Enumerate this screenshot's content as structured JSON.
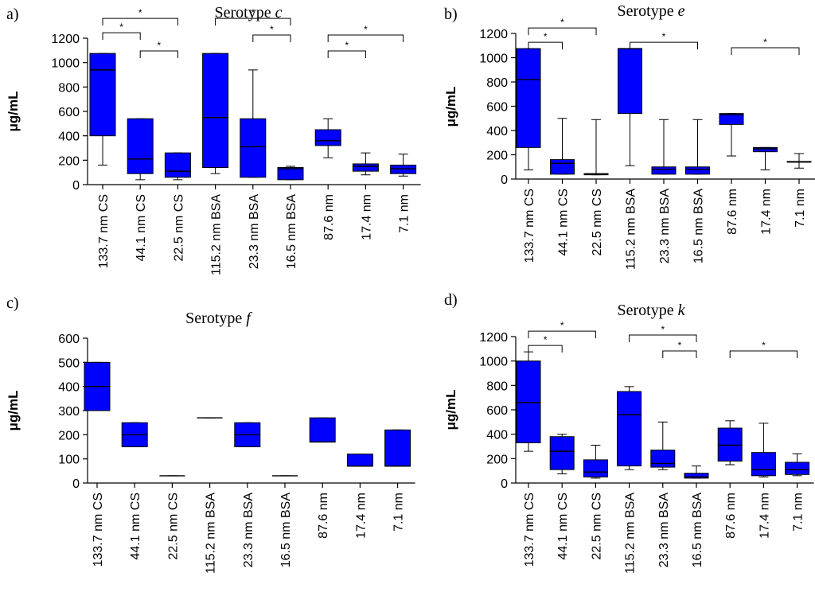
{
  "chart_data": [
    {
      "type": "box",
      "panel": "a)",
      "title": "Serotype ",
      "title_italic": "c",
      "ylabel": "μg/mL",
      "ylim": [
        0,
        1200
      ],
      "yticks": [
        "0",
        "200",
        "400",
        "600",
        "800",
        "1000",
        "1200"
      ],
      "categories": [
        "133.7 nm CS",
        "44.1 nm CS",
        "22.5 nm CS",
        "115.2 nm BSA",
        "23.3 nm BSA",
        "16.5 nm BSA",
        "87.6 nm",
        "17.4 nm",
        "7.1 nm"
      ],
      "boxes": [
        {
          "min": 160,
          "q1": 400,
          "median": 940,
          "q3": 1075,
          "max": 1075
        },
        {
          "min": 40,
          "q1": 90,
          "median": 210,
          "q3": 540,
          "max": 540
        },
        {
          "min": 40,
          "q1": 60,
          "median": 110,
          "q3": 260,
          "max": 260
        },
        {
          "min": 90,
          "q1": 140,
          "median": 550,
          "q3": 1075,
          "max": 1075
        },
        {
          "min": 60,
          "q1": 60,
          "median": 310,
          "q3": 540,
          "max": 940
        },
        {
          "min": 40,
          "q1": 40,
          "median": 130,
          "q3": 140,
          "max": 150
        },
        {
          "min": 220,
          "q1": 320,
          "median": 360,
          "q3": 450,
          "max": 540
        },
        {
          "min": 80,
          "q1": 110,
          "median": 150,
          "q3": 170,
          "max": 260
        },
        {
          "min": 70,
          "q1": 90,
          "median": 130,
          "q3": 160,
          "max": 250
        }
      ],
      "significance": [
        {
          "from": 0,
          "to": 1,
          "level": 1,
          "label": "*"
        },
        {
          "from": 0,
          "to": 2,
          "level": 2,
          "label": "*"
        },
        {
          "from": 1,
          "to": 2,
          "level": 0,
          "label": "*"
        },
        {
          "from": 3,
          "to": 5,
          "level": 2,
          "label": "*"
        },
        {
          "from": 4,
          "to": 5,
          "level": 1,
          "label": "*"
        },
        {
          "from": 6,
          "to": 7,
          "level": 0,
          "label": "*"
        },
        {
          "from": 6,
          "to": 8,
          "level": 1,
          "label": "*"
        }
      ]
    },
    {
      "type": "box",
      "panel": "b)",
      "title": "Serotype ",
      "title_italic": "e",
      "ylabel": "μg/mL",
      "ylim": [
        0,
        1200
      ],
      "yticks": [
        "0",
        "200",
        "400",
        "600",
        "800",
        "1000",
        "1200"
      ],
      "categories": [
        "133.7 nm CS",
        "44.1 nm CS",
        "22.5 nm CS",
        "115.2 nm BSA",
        "23.3 nm BSA",
        "16.5 nm BSA",
        "87.6 nm",
        "17.4 nm",
        "7.1 nm"
      ],
      "boxes": [
        {
          "min": 75,
          "q1": 260,
          "median": 820,
          "q3": 1075,
          "max": 1075
        },
        {
          "min": 40,
          "q1": 40,
          "median": 130,
          "q3": 160,
          "max": 500
        },
        {
          "min": 35,
          "q1": 35,
          "median": 40,
          "q3": 45,
          "max": 490
        },
        {
          "min": 110,
          "q1": 540,
          "median": 1075,
          "q3": 1075,
          "max": 1075
        },
        {
          "min": 40,
          "q1": 40,
          "median": 80,
          "q3": 100,
          "max": 490
        },
        {
          "min": 40,
          "q1": 40,
          "median": 80,
          "q3": 100,
          "max": 490
        },
        {
          "min": 190,
          "q1": 450,
          "median": 530,
          "q3": 540,
          "max": 540
        },
        {
          "min": 75,
          "q1": 225,
          "median": 250,
          "q3": 260,
          "max": 260
        },
        {
          "min": 90,
          "q1": 140,
          "median": 140,
          "q3": 145,
          "max": 210
        }
      ],
      "significance": [
        {
          "from": 0,
          "to": 1,
          "level": 0,
          "label": "*"
        },
        {
          "from": 0,
          "to": 2,
          "level": 1,
          "label": "*"
        },
        {
          "from": 3,
          "to": 5,
          "level": 0,
          "label": "*"
        },
        {
          "from": 6,
          "to": 8,
          "level": 0,
          "label": "*"
        }
      ]
    },
    {
      "type": "box",
      "panel": "c)",
      "title": "Serotype ",
      "title_italic": "f",
      "ylabel": "μg/mL",
      "ylim": [
        0,
        600
      ],
      "yticks": [
        "0",
        "100",
        "200",
        "300",
        "400",
        "500",
        "600"
      ],
      "categories": [
        "133.7 nm CS",
        "44.1 nm CS",
        "22.5 nm CS",
        "115.2 nm BSA",
        "23.3 nm BSA",
        "16.5 nm BSA",
        "87.6 nm",
        "17.4 nm",
        "7.1 nm"
      ],
      "boxes": [
        {
          "min": 300,
          "q1": 300,
          "median": 400,
          "q3": 500,
          "max": 500
        },
        {
          "min": 150,
          "q1": 150,
          "median": 200,
          "q3": 250,
          "max": 250
        },
        {
          "min": 30,
          "q1": 30,
          "median": 30,
          "q3": 30,
          "max": 30
        },
        {
          "min": 270,
          "q1": 270,
          "median": 270,
          "q3": 270,
          "max": 270
        },
        {
          "min": 150,
          "q1": 150,
          "median": 200,
          "q3": 250,
          "max": 250
        },
        {
          "min": 30,
          "q1": 30,
          "median": 30,
          "q3": 30,
          "max": 30
        },
        {
          "min": 170,
          "q1": 170,
          "median": 170,
          "q3": 270,
          "max": 270
        },
        {
          "min": 70,
          "q1": 70,
          "median": 70,
          "q3": 120,
          "max": 120
        },
        {
          "min": 70,
          "q1": 70,
          "median": 70,
          "q3": 220,
          "max": 220
        }
      ],
      "significance": []
    },
    {
      "type": "box",
      "panel": "d)",
      "title": "Serotype ",
      "title_italic": "k",
      "ylabel": "μg/mL",
      "ylim": [
        0,
        1200
      ],
      "yticks": [
        "0",
        "200",
        "400",
        "600",
        "800",
        "1000",
        "1200"
      ],
      "categories": [
        "133.7 nm CS",
        "44.1 nm CS",
        "22.5 nm CS",
        "115.2 nm BSA",
        "23.3 nm BSA",
        "16.5 nm BSA",
        "87.6 nm",
        "17.4 nm",
        "7.1 nm"
      ],
      "boxes": [
        {
          "min": 260,
          "q1": 330,
          "median": 660,
          "q3": 1000,
          "max": 1075
        },
        {
          "min": 75,
          "q1": 110,
          "median": 260,
          "q3": 380,
          "max": 400
        },
        {
          "min": 40,
          "q1": 50,
          "median": 90,
          "q3": 190,
          "max": 310
        },
        {
          "min": 110,
          "q1": 140,
          "median": 560,
          "q3": 750,
          "max": 790
        },
        {
          "min": 110,
          "q1": 130,
          "median": 160,
          "q3": 270,
          "max": 500
        },
        {
          "min": 40,
          "q1": 40,
          "median": 50,
          "q3": 80,
          "max": 140
        },
        {
          "min": 150,
          "q1": 180,
          "median": 310,
          "q3": 450,
          "max": 510
        },
        {
          "min": 50,
          "q1": 60,
          "median": 110,
          "q3": 250,
          "max": 490
        },
        {
          "min": 60,
          "q1": 70,
          "median": 110,
          "q3": 170,
          "max": 240
        }
      ],
      "significance": [
        {
          "from": 0,
          "to": 1,
          "level": 0,
          "label": "*"
        },
        {
          "from": 0,
          "to": 2,
          "level": 1,
          "label": "*"
        },
        {
          "from": 3,
          "to": 5,
          "level": 1,
          "label": "*"
        },
        {
          "from": 4,
          "to": 5,
          "level": 0,
          "label": "*"
        },
        {
          "from": 6,
          "to": 8,
          "level": 0,
          "label": "*"
        }
      ]
    }
  ]
}
